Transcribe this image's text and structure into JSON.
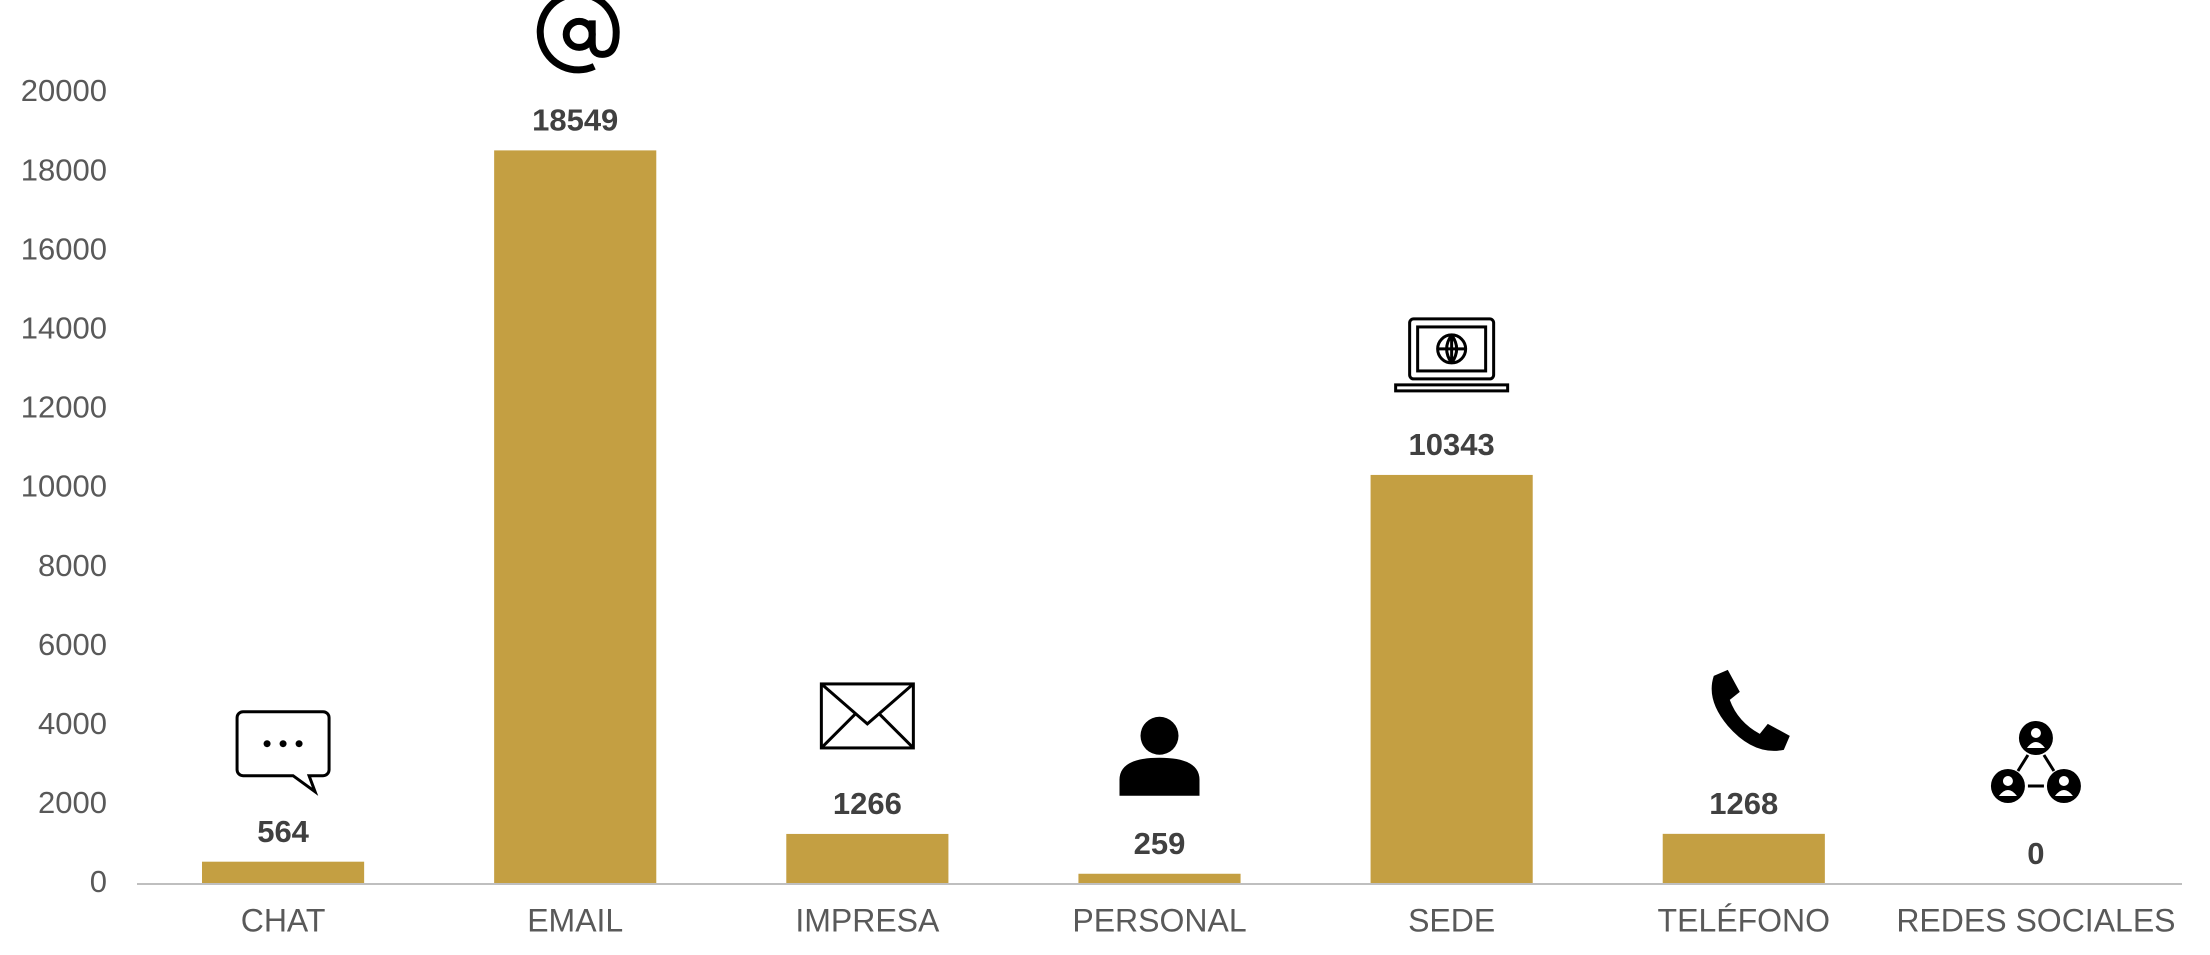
{
  "chart_data": {
    "type": "bar",
    "categories": [
      "CHAT",
      "EMAIL",
      "IMPRESA",
      "PERSONAL",
      "SEDE",
      "TELÉFONO",
      "REDES SOCIALES"
    ],
    "values": [
      564,
      18549,
      1266,
      259,
      10343,
      1268,
      0
    ],
    "color": "#c49f42",
    "ylim": [
      0,
      20000
    ],
    "yticks": [
      0,
      2000,
      4000,
      6000,
      8000,
      10000,
      12000,
      14000,
      16000,
      18000,
      20000
    ],
    "grid": false
  }
}
